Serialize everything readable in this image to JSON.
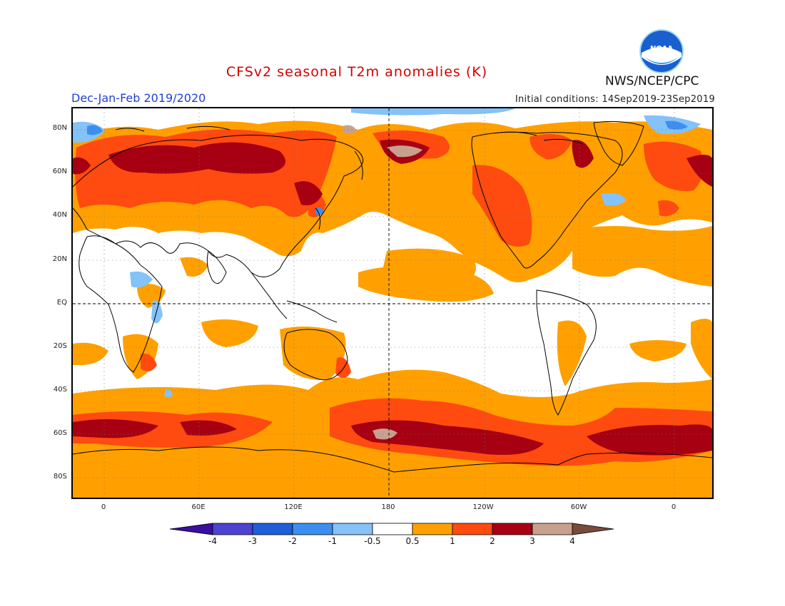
{
  "header": {
    "title": "CFSv2 seasonal T2m anomalies (K)",
    "season": "Dec-Jan-Feb 2019/2020",
    "initial_conditions": "Initial conditions: 14Sep2019-23Sep2019",
    "agency": "NWS/NCEP/CPC",
    "logo_text": "NOAA"
  },
  "map": {
    "projection": "global cylindrical, 0° repeated at both edges",
    "lat_labels": [
      "80N",
      "60N",
      "40N",
      "20N",
      "EQ",
      "20S",
      "40S",
      "60S",
      "80S"
    ],
    "lon_labels": [
      "0",
      "60E",
      "120E",
      "180",
      "120W",
      "60W",
      "0"
    ],
    "reference_lines": [
      "Equator",
      "180° meridian"
    ]
  },
  "colorbar": {
    "labels": [
      "-4",
      "-3",
      "-2",
      "-1",
      "-0.5",
      "0.5",
      "1",
      "2",
      "3",
      "4"
    ],
    "colors": [
      "#3a0e9e",
      "#4c43d0",
      "#1f5fd8",
      "#3c8ff0",
      "#84c2f8",
      "#ffffff",
      "#ffa000",
      "#ff4a10",
      "#a60012",
      "#c8a090",
      "#7a4a3a"
    ]
  },
  "palette": {
    "white": "#ffffff",
    "orange": "#ffa000",
    "red": "#ff4a10",
    "darkred": "#a60012",
    "brown": "#c8a090",
    "lightblue": "#84c2f8",
    "blue": "#3c8ff0"
  }
}
